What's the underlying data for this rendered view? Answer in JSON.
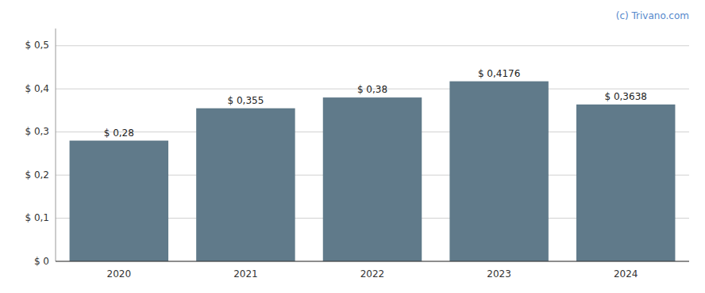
{
  "chart_data": {
    "type": "bar",
    "categories": [
      "2020",
      "2021",
      "2022",
      "2023",
      "2024"
    ],
    "values": [
      0.28,
      0.355,
      0.38,
      0.4176,
      0.3638
    ],
    "value_labels": [
      "$ 0,28",
      "$ 0,355",
      "$ 0,38",
      "$ 0,4176",
      "$ 0,3638"
    ],
    "data_labels": true,
    "color": "#607a8a",
    "ylim": [
      0,
      0.54
    ],
    "yticks": [
      {
        "value": 0,
        "label": "$ 0"
      },
      {
        "value": 0.1,
        "label": "$ 0,1"
      },
      {
        "value": 0.2,
        "label": "$ 0,2"
      },
      {
        "value": 0.3,
        "label": "$ 0,3"
      },
      {
        "value": 0.4,
        "label": "$ 0,4"
      },
      {
        "value": 0.5,
        "label": "$ 0,5"
      }
    ],
    "grid": true,
    "annotation": "(c) Trivano.com"
  }
}
